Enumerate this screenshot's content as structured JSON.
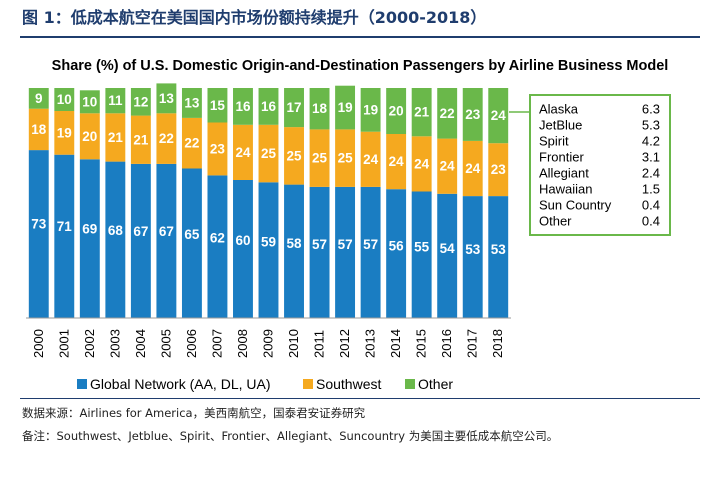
{
  "figure": {
    "title": "图 1：低成本航空在美国国内市场份额持续提升（2000-2018）",
    "source": "数据来源：Airlines for America，美西南航空，国泰君安证券研究",
    "note": "备注：Southwest、Jetblue、Spirit、Frontier、Allegiant、Suncountry 为美国主要低成本航空公司。"
  },
  "chart_data": {
    "type": "bar",
    "stacked": true,
    "title": "Share (%) of U.S. Domestic Origin-and-Destination Passengers by Airline Business Model",
    "xlabel": "",
    "ylabel": "",
    "ylim": [
      0,
      100
    ],
    "grid": false,
    "legend_position": "bottom",
    "categories": [
      "2000",
      "2001",
      "2002",
      "2003",
      "2004",
      "2005",
      "2006",
      "2007",
      "2008",
      "2009",
      "2010",
      "2011",
      "2012",
      "2013",
      "2014",
      "2015",
      "2016",
      "2017",
      "2018"
    ],
    "series": [
      {
        "name": "Global Network (AA, DL, UA)",
        "color": "#1a7dc2",
        "values": [
          73,
          71,
          69,
          68,
          67,
          67,
          65,
          62,
          60,
          59,
          58,
          57,
          57,
          57,
          56,
          55,
          54,
          53,
          53
        ]
      },
      {
        "name": "Southwest",
        "color": "#f5a91f",
        "values": [
          18,
          19,
          20,
          21,
          21,
          22,
          22,
          23,
          24,
          25,
          25,
          25,
          25,
          24,
          24,
          24,
          24,
          24,
          23
        ]
      },
      {
        "name": "Other",
        "color": "#6ab84a",
        "values": [
          9,
          10,
          10,
          11,
          12,
          13,
          13,
          15,
          16,
          16,
          17,
          18,
          19,
          19,
          20,
          21,
          22,
          23,
          24
        ]
      }
    ],
    "breakdown_table": {
      "border_color": "#6ab84a",
      "rows": [
        {
          "name": "Alaska",
          "value": "6.3"
        },
        {
          "name": "JetBlue",
          "value": "5.3"
        },
        {
          "name": "Spirit",
          "value": "4.2"
        },
        {
          "name": "Frontier",
          "value": "3.1"
        },
        {
          "name": "Allegiant",
          "value": "2.4"
        },
        {
          "name": "Hawaiian",
          "value": "1.5"
        },
        {
          "name": "Sun Country",
          "value": "0.4"
        },
        {
          "name": "Other",
          "value": "0.4"
        }
      ]
    }
  }
}
